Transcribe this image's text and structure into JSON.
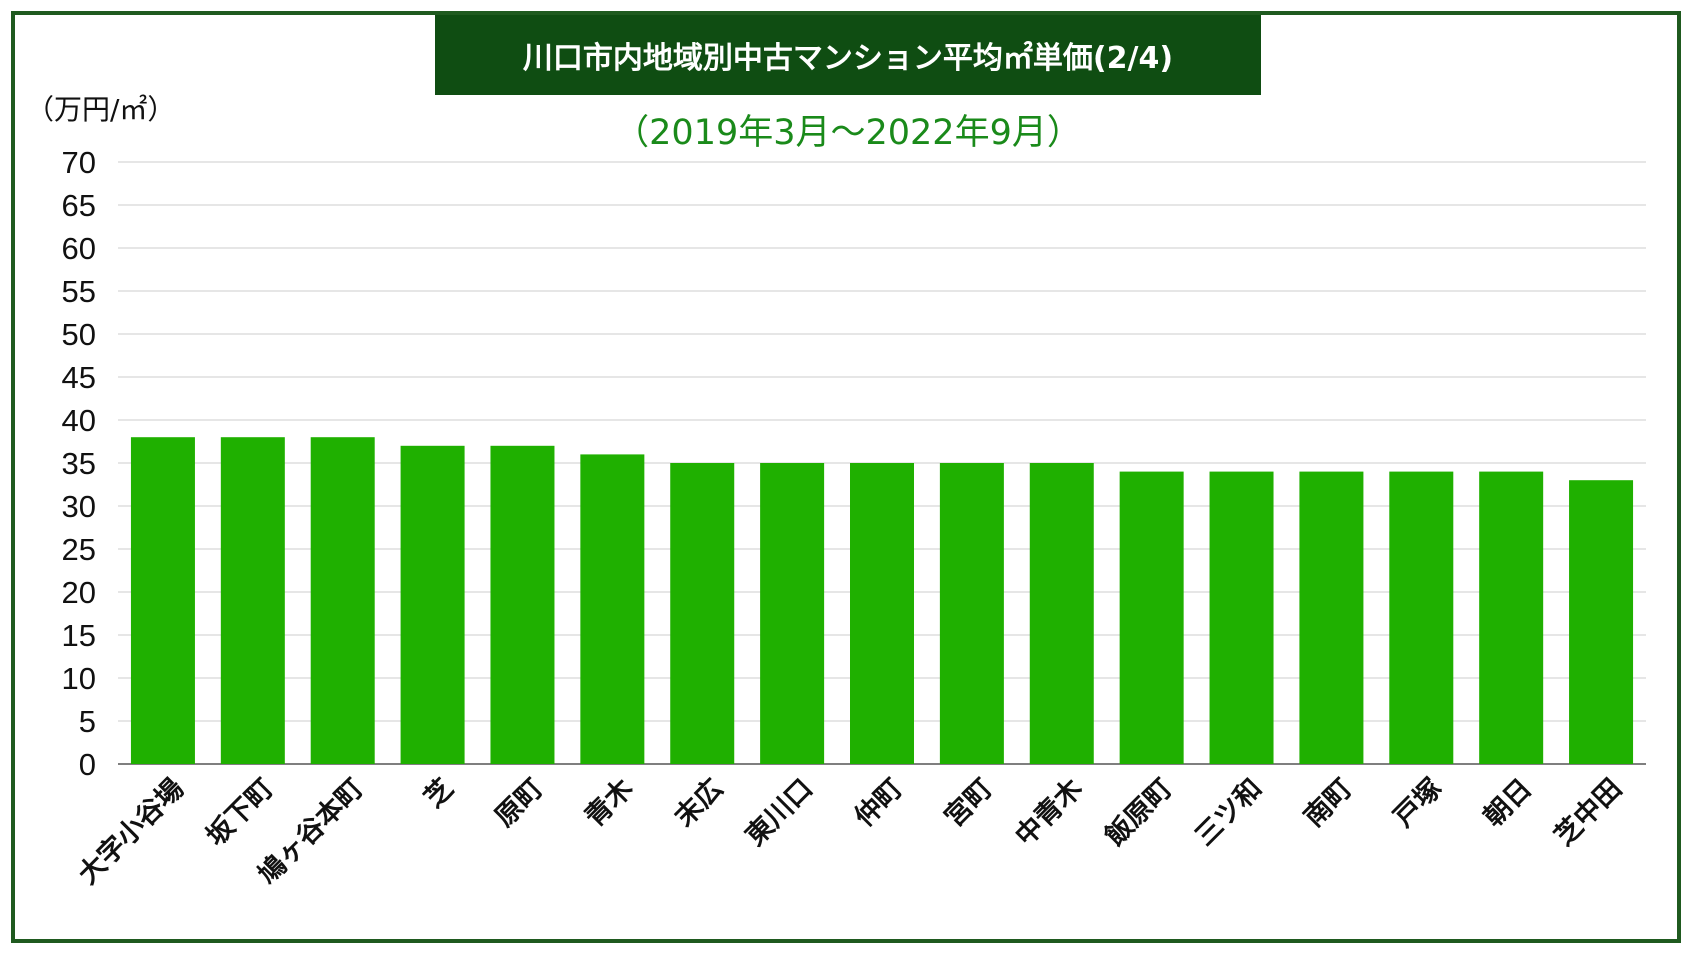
{
  "chart_data": {
    "type": "bar",
    "title": "川口市内地域別中古マンション平均㎡単価(2/4)",
    "subtitle": "（2019年3月〜2022年9月）",
    "ylabel": "（万円/㎡）",
    "xlabel": "",
    "ylim": [
      0,
      70
    ],
    "yticks": [
      0,
      5,
      10,
      15,
      20,
      25,
      30,
      35,
      40,
      45,
      50,
      55,
      60,
      65,
      70
    ],
    "grid": true,
    "categories": [
      "大字小谷場",
      "坂下町",
      "鳩ヶ谷本町",
      "芝",
      "原町",
      "青木",
      "末広",
      "東川口",
      "仲町",
      "宮町",
      "中青木",
      "飯原町",
      "三ツ和",
      "南町",
      "戸塚",
      "朝日",
      "芝中田"
    ],
    "values": [
      38,
      38,
      38,
      37,
      37,
      36,
      35,
      35,
      35,
      35,
      35,
      34,
      34,
      34,
      34,
      34,
      33
    ],
    "colors": {
      "bar": "#1fb000",
      "title_bg": "#0f4d12",
      "title_text": "#ffffff",
      "subtitle_text": "#1a8a1a",
      "frame": "#1f5a1f",
      "grid": "#cccccc"
    }
  }
}
